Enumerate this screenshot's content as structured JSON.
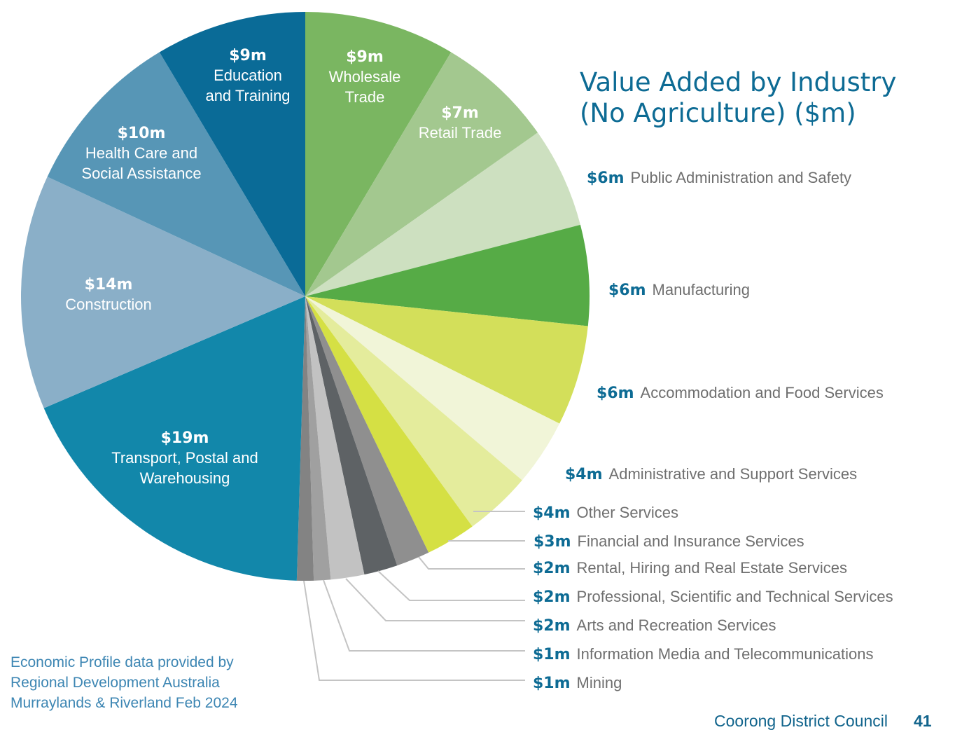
{
  "chart_data": {
    "type": "pie",
    "title": "Value Added by Industry",
    "subtitle": "(No Agriculture) ($m)",
    "unit": "$m",
    "slices": [
      {
        "value": 9,
        "display": "$9m",
        "label": "Wholesale Trade",
        "label_lines": [
          "Wholesale",
          "Trade"
        ],
        "color": "#7ab661",
        "placement": "inside"
      },
      {
        "value": 7,
        "display": "$7m",
        "label": "Retail Trade",
        "label_lines": [
          "Retail Trade"
        ],
        "color": "#a3c88f",
        "placement": "inside"
      },
      {
        "value": 6,
        "display": "$6m",
        "label": "Public Administration and Safety",
        "color": "#cde0c0",
        "placement": "outside"
      },
      {
        "value": 6,
        "display": "$6m",
        "label": "Manufacturing",
        "color": "#56ab46",
        "placement": "outside"
      },
      {
        "value": 6,
        "display": "$6m",
        "label": "Accommodation and Food Services",
        "color": "#d3df5a",
        "placement": "outside"
      },
      {
        "value": 4,
        "display": "$4m",
        "label": "Administrative and Support Services",
        "color": "#f1f5d8",
        "placement": "outside"
      },
      {
        "value": 4,
        "display": "$4m",
        "label": "Other Services",
        "color": "#e4ec9c",
        "placement": "outside"
      },
      {
        "value": 3,
        "display": "$3m",
        "label": "Financial and Insurance Services",
        "color": "#d5e044",
        "placement": "outside"
      },
      {
        "value": 2,
        "display": "$2m",
        "label": "Rental, Hiring and Real Estate Services",
        "color": "#8f8f8f",
        "placement": "outside"
      },
      {
        "value": 2,
        "display": "$2m",
        "label": "Professional, Scientific and Technical Services",
        "color": "#5e6265",
        "placement": "outside"
      },
      {
        "value": 2,
        "display": "$2m",
        "label": "Arts and Recreation Services",
        "color": "#c2c2c2",
        "placement": "outside"
      },
      {
        "value": 1,
        "display": "$1m",
        "label": "Information Media and Telecommunications",
        "color": "#a0a0a0",
        "placement": "outside"
      },
      {
        "value": 1,
        "display": "$1m",
        "label": "Mining",
        "color": "#838383",
        "placement": "outside"
      },
      {
        "value": 19,
        "display": "$19m",
        "label": "Transport, Postal and Warehousing",
        "label_lines": [
          "Transport, Postal and",
          "Warehousing"
        ],
        "color": "#1287aa",
        "placement": "inside"
      },
      {
        "value": 14,
        "display": "$14m",
        "label": "Construction",
        "label_lines": [
          "Construction"
        ],
        "color": "#8aafc8",
        "placement": "inside"
      },
      {
        "value": 10,
        "display": "$10m",
        "label": "Health Care and Social Assistance",
        "label_lines": [
          "Health Care and",
          "Social Assistance"
        ],
        "color": "#5796b6",
        "placement": "inside"
      },
      {
        "value": 9,
        "display": "$9m",
        "label": "Education and Training",
        "label_lines": [
          "Education",
          "and Training"
        ],
        "color": "#0a6b97",
        "placement": "inside"
      }
    ]
  },
  "source": {
    "lines": [
      "Economic Profile data provided by",
      "Regional Development Australia",
      "Murraylands & Riverland Feb 2024"
    ]
  },
  "footer": {
    "council": "Coorong District Council",
    "page_number": "41"
  },
  "colors": {
    "value_label": "#0d6b94",
    "category_label": "#6f6f6f",
    "title": "#0d6b94",
    "source": "#3d86b3",
    "leader_line": "#c4c4c4"
  }
}
